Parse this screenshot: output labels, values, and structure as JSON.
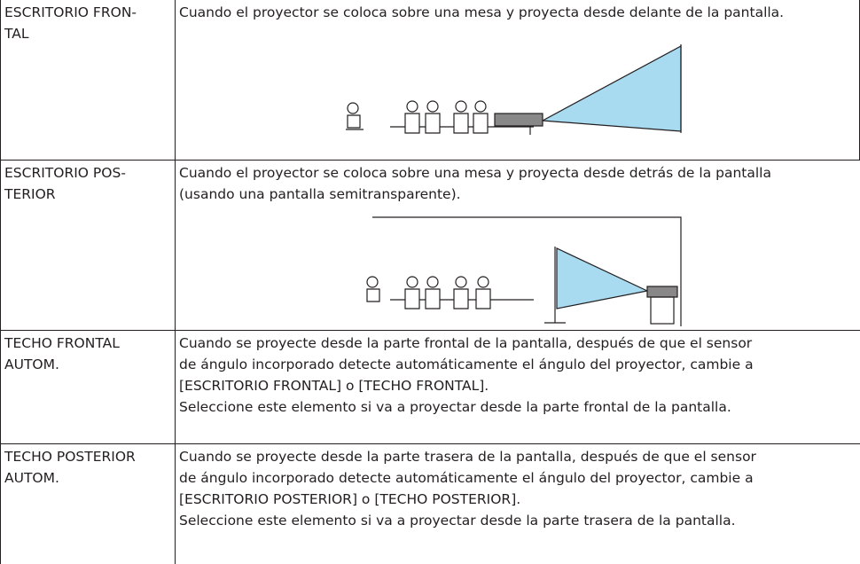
{
  "rows": [
    {
      "label": [
        "ESCRITORIO FRON-",
        "TAL"
      ],
      "description": [
        "Cuando el proyector se coloca sobre una mesa y proyecta desde delante de la pantalla."
      ]
    },
    {
      "label": [
        "ESCRITORIO POS-",
        "TERIOR"
      ],
      "description": [
        "Cuando el proyector se coloca sobre una mesa y proyecta desde detrás de la pantalla",
        "(usando una pantalla semitransparente)."
      ]
    },
    {
      "label": [
        "TECHO FRONTAL",
        "AUTOM."
      ],
      "description": [
        "Cuando se proyecte desde la parte frontal de la pantalla, después de que el sensor",
        "de ángulo incorporado detecte automáticamente el ángulo del proyector, cambie a",
        "[ESCRITORIO FRONTAL] o [TECHO FRONTAL].",
        "Seleccione este elemento si va a proyectar desde la parte frontal de la pantalla."
      ]
    },
    {
      "label": [
        "TECHO POSTERIOR",
        "AUTOM."
      ],
      "description": [
        "Cuando se proyecte desde la parte trasera de la pantalla, después de que el sensor",
        "de ángulo incorporado detecte automáticamente el ángulo del proyector, cambie a",
        "[ESCRITORIO POSTERIOR] o [TECHO POSTERIOR].",
        "Seleccione este elemento si va a proyectar desde la parte trasera de la pantalla."
      ]
    }
  ]
}
